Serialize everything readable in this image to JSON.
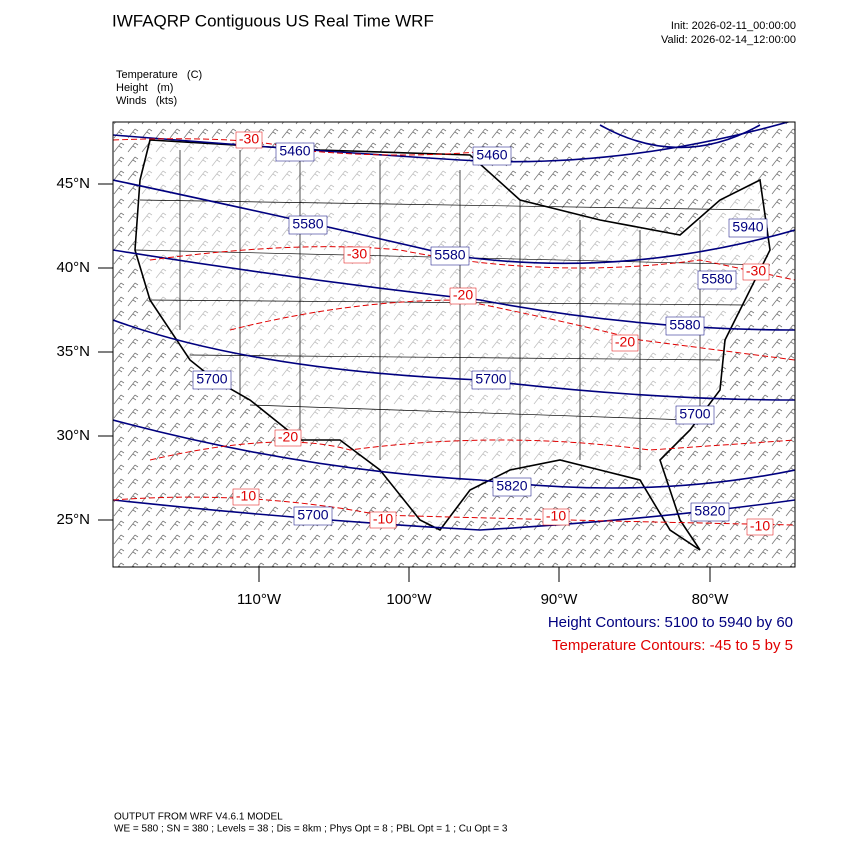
{
  "header": {
    "title": "IWFAQRP Contiguous US Real Time WRF",
    "init": "Init: 2026-02-11_00:00:00",
    "valid": "Valid: 2026-02-14_12:00:00"
  },
  "fields": [
    "Temperature   (C)",
    "Height   (m)",
    "Winds   (kts)"
  ],
  "axes": {
    "latitude_labels": [
      "45°N",
      "40°N",
      "35°N",
      "30°N",
      "25°N"
    ],
    "longitude_labels": [
      "110°W",
      "100°W",
      "90°W",
      "80°W"
    ]
  },
  "height_contour_labels": [
    "5460",
    "5460",
    "5580",
    "5580",
    "5940",
    "5580",
    "5580",
    "5700",
    "5700",
    "5700",
    "5820",
    "5700",
    "5820"
  ],
  "temperature_contour_labels": [
    "-30",
    "-30",
    "-30",
    "-20",
    "-20",
    "-20",
    "-10",
    "-10",
    "-10",
    "-10"
  ],
  "legend": {
    "height": "Height Contours: 5100 to 5940 by 60",
    "temperature": "Temperature Contours: -45 to 5 by 5"
  },
  "footer": {
    "model": "OUTPUT FROM WRF V4.6.1 MODEL",
    "options": "WE = 580 ; SN = 380 ; Levels = 38 ; Dis = 8km ; Phys Opt = 8 ; PBL Opt = 1 ; Cu Opt = 3"
  }
}
